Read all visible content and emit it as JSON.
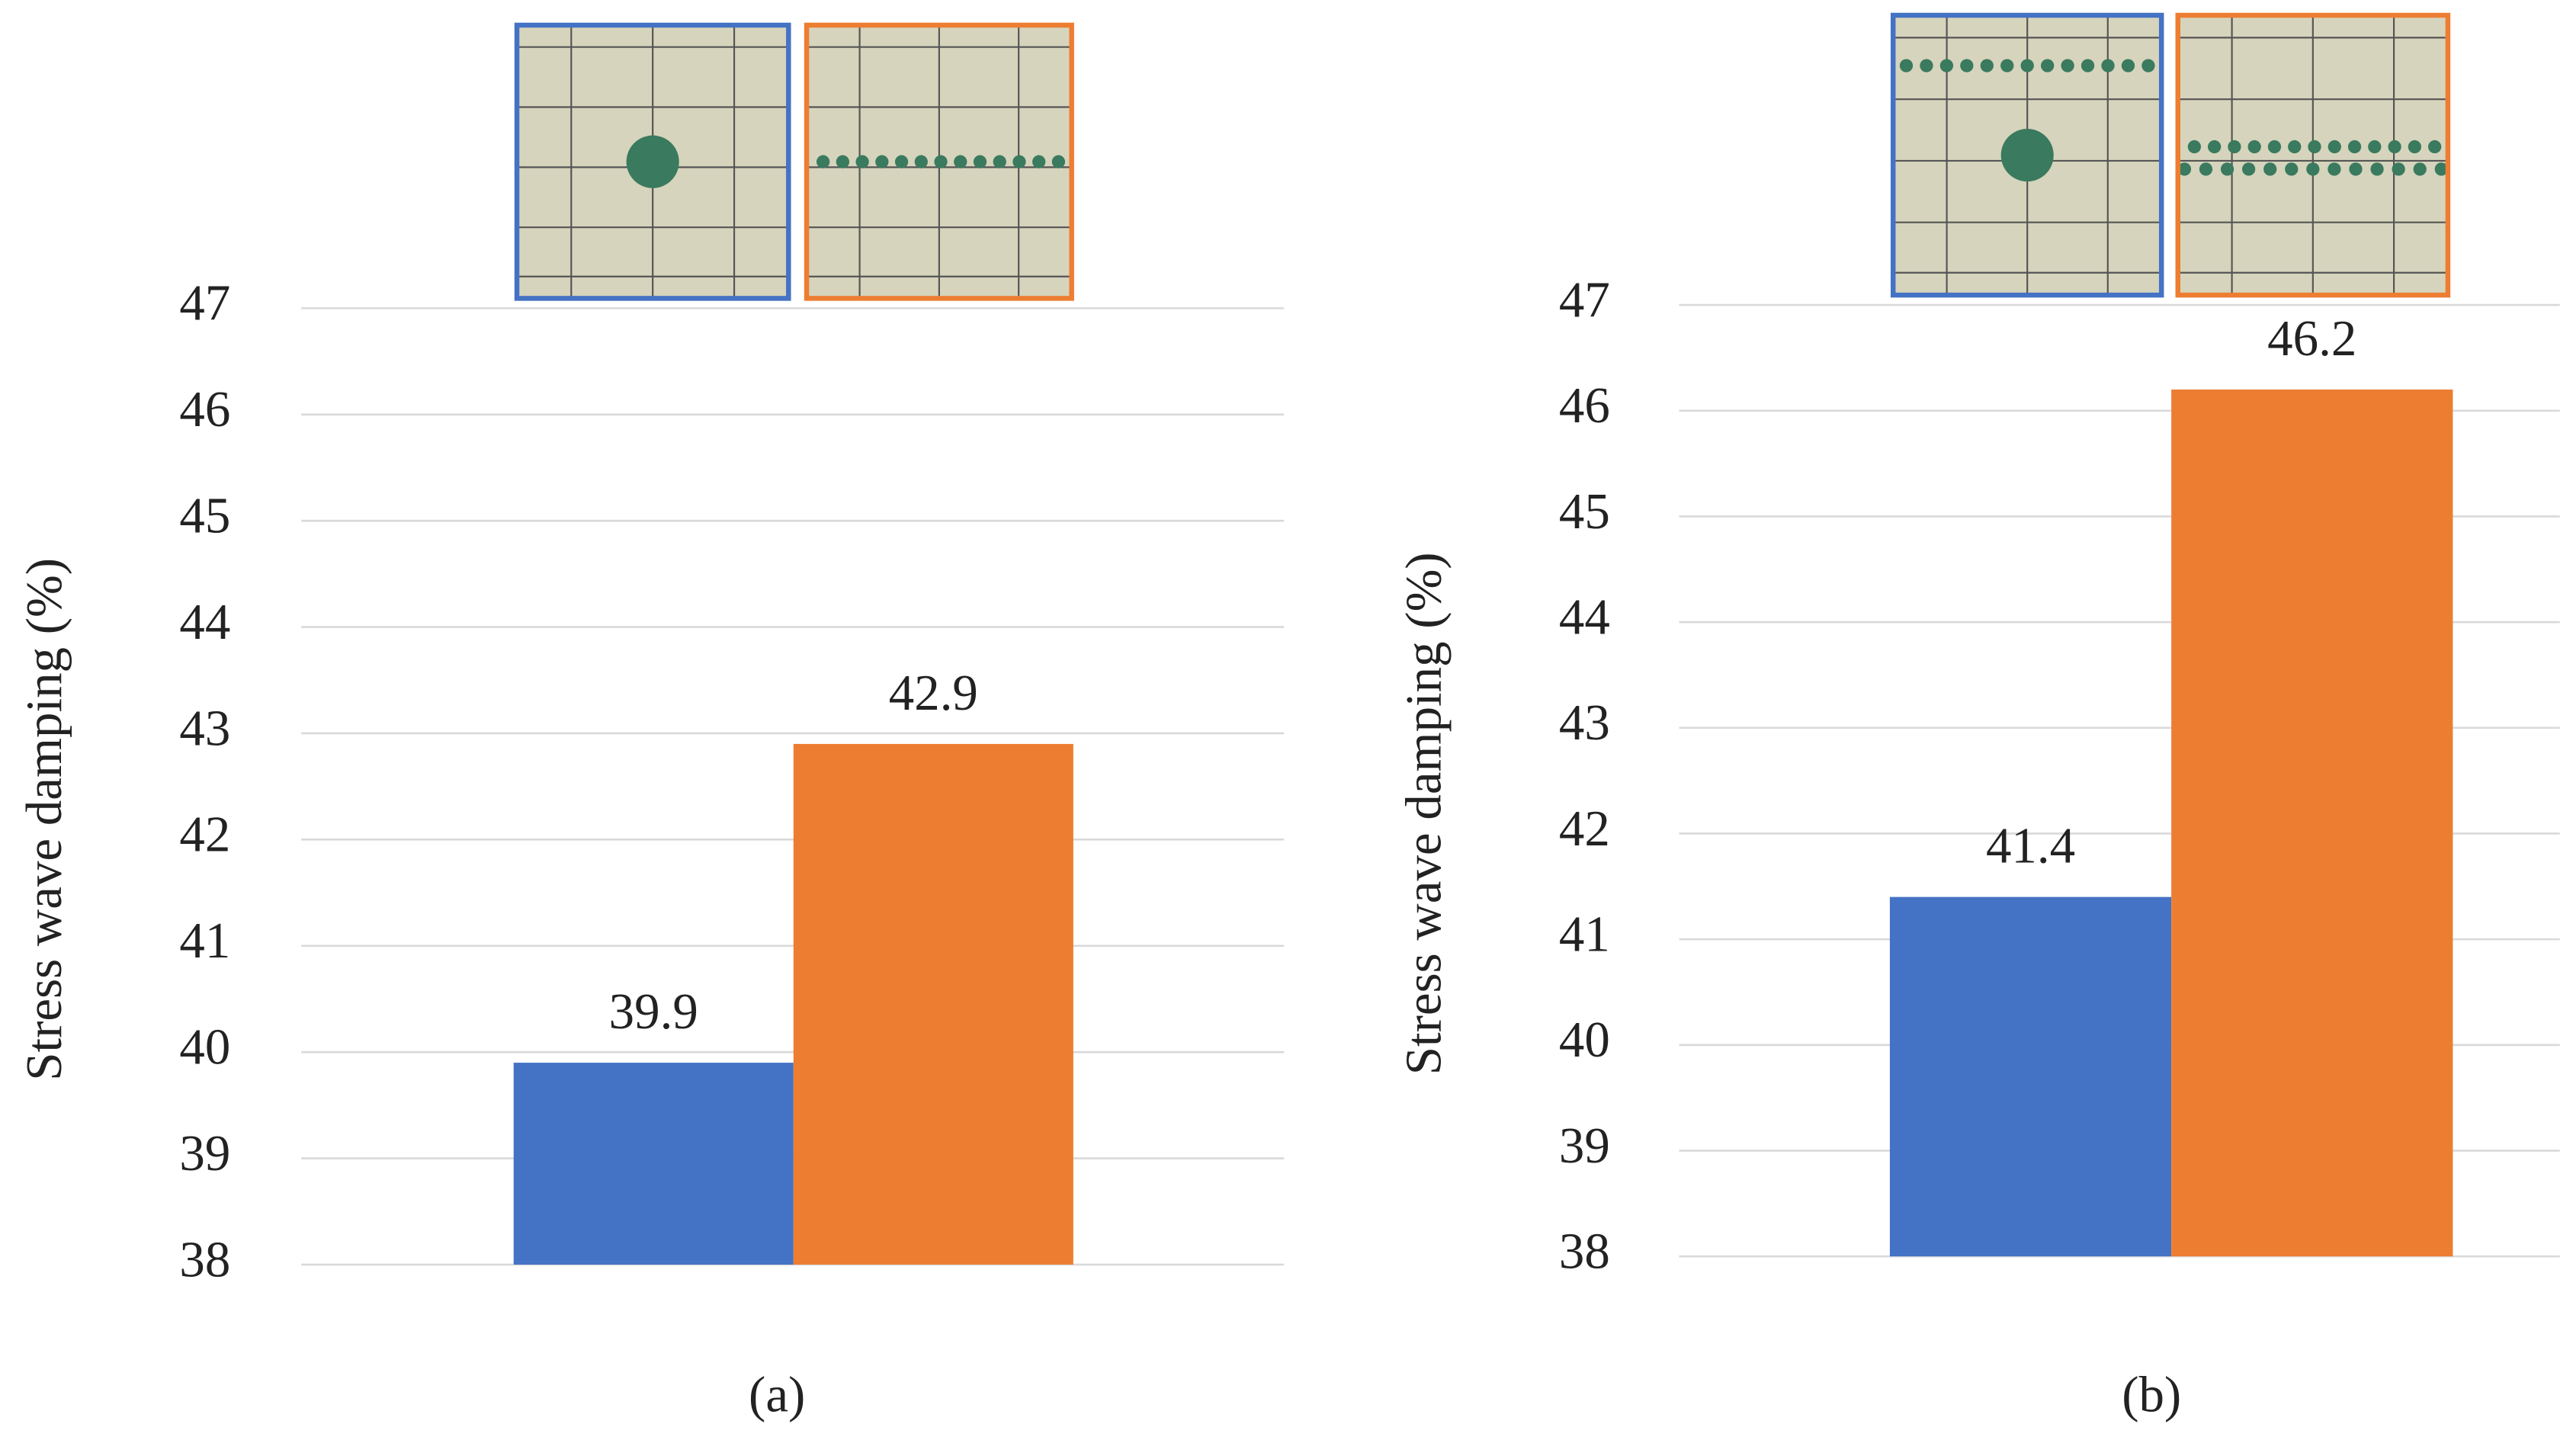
{
  "chart_data": [
    {
      "type": "bar",
      "caption": "(a)",
      "y_label": "Stress wave damping (%)",
      "series": [
        {
          "color": "#4472c4",
          "values": [
            39.9
          ]
        },
        {
          "color": "#ed7d31",
          "values": [
            42.9
          ]
        }
      ],
      "ylim": [
        38,
        47
      ],
      "yticks": [
        38,
        39,
        40,
        41,
        42,
        43,
        44,
        45,
        46,
        47
      ],
      "grid": true
    },
    {
      "type": "bar",
      "caption": "(b)",
      "y_label": "Stress wave damping (%)",
      "series": [
        {
          "color": "#4472c4",
          "values": [
            41.4
          ]
        },
        {
          "color": "#ed7d31",
          "values": [
            46.2
          ]
        }
      ],
      "ylim": [
        38,
        47
      ],
      "yticks": [
        38,
        39,
        40,
        41,
        42,
        43,
        44,
        45,
        46,
        47
      ],
      "grid": true
    }
  ]
}
